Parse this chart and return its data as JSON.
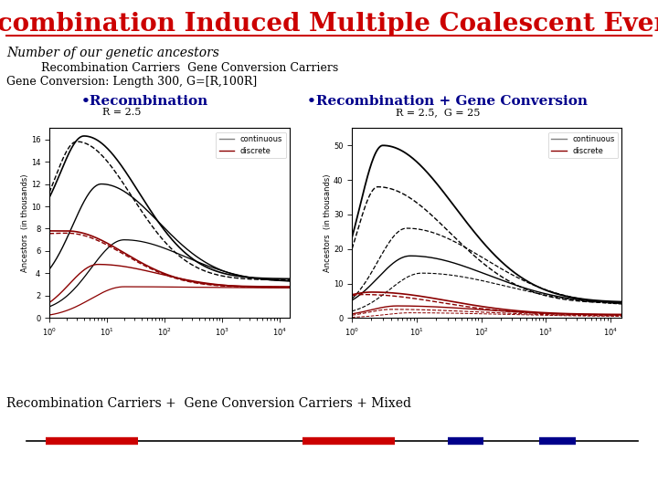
{
  "title": "Recombination Induced Multiple Coalescent Events",
  "subtitle1": "Number of our genetic ancestors",
  "subtitle2": "    Recombination Carriers  Gene Conversion Carriers",
  "subtitle3": "Gene Conversion: Length 300, G=[R,100R]",
  "left_label": "•Recombination",
  "right_label": "•Recombination + Gene Conversion",
  "left_subtitle": "R = 2.5",
  "right_subtitle": "R = 2.5,  G = 25",
  "bottom_label": "Recombination Carriers +  Gene Conversion Carriers + Mixed",
  "title_color": "#cc0000",
  "label_color": "#00008b",
  "bg_color": "#ffffff",
  "line_black": "#000000",
  "line_red": "#8b0000",
  "line_blue": "#00008b"
}
